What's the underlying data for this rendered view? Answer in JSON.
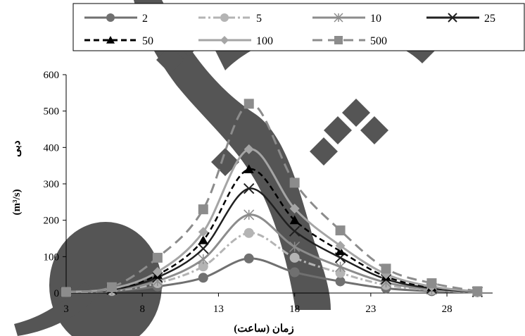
{
  "chart_data": {
    "type": "line",
    "xlabel": "زمان (ساعت)",
    "ylabel": "دبی (m³/s)",
    "ylabel_main": "دبی",
    "ylabel_unit": "(m³/s)",
    "xlim": [
      3,
      31
    ],
    "ylim": [
      0,
      600
    ],
    "xticks": [
      3,
      8,
      13,
      18,
      23,
      28
    ],
    "yticks": [
      0,
      100,
      200,
      300,
      400,
      500,
      600
    ],
    "grid": false,
    "legend_position": "top",
    "x": [
      3,
      6,
      9,
      12,
      15,
      18,
      21,
      24,
      27,
      30
    ],
    "series": [
      {
        "name": "2",
        "color": "#707070",
        "dash": "solid",
        "marker": "circle",
        "values": [
          3,
          5,
          18,
          42,
          95,
          57,
          32,
          13,
          5,
          2
        ]
      },
      {
        "name": "5",
        "color": "#b4b4b4",
        "dash": "dashdot",
        "marker": "circle",
        "values": [
          3,
          6,
          27,
          73,
          165,
          97,
          55,
          22,
          8,
          2
        ]
      },
      {
        "name": "10",
        "color": "#8c8c8c",
        "dash": "solid",
        "marker": "star",
        "values": [
          3,
          8,
          33,
          93,
          215,
          127,
          72,
          29,
          10,
          3
        ]
      },
      {
        "name": "25",
        "color": "#202020",
        "dash": "solid",
        "marker": "x",
        "values": [
          3,
          9,
          43,
          122,
          287,
          170,
          97,
          38,
          13,
          3
        ]
      },
      {
        "name": "50",
        "color": "#000000",
        "dash": "dash",
        "marker": "triangle",
        "values": [
          3,
          11,
          50,
          145,
          340,
          200,
          115,
          45,
          16,
          4
        ]
      },
      {
        "name": "100",
        "color": "#a5a5a5",
        "dash": "solid",
        "marker": "diamond",
        "values": [
          3,
          12,
          58,
          168,
          395,
          232,
          130,
          52,
          18,
          4
        ]
      },
      {
        "name": "500",
        "color": "#8c8c8c",
        "dash": "longdash",
        "marker": "square",
        "values": [
          3,
          16,
          97,
          230,
          520,
          303,
          172,
          67,
          27,
          5
        ]
      }
    ]
  },
  "colors": {
    "watermark": "#555555",
    "axis": "#000000"
  }
}
